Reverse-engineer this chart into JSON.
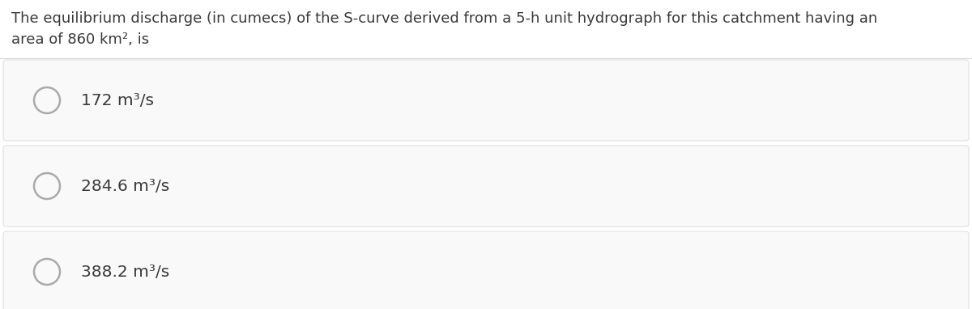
{
  "background_color": "#ffffff",
  "question_line1": "The equilibrium discharge (in cumecs) of the S-curve derived from a 5-h unit hydrograph for this catchment having an",
  "question_line2": "area of 860 km², is",
  "options": [
    "172 m³/s",
    "284.6 m³/s",
    "388.2 m³/s"
  ],
  "text_color": "#3a3a3a",
  "divider_color": "#d8d8d8",
  "circle_edge_color": "#aaaaaa",
  "font_size_question": 13.0,
  "font_size_options": 14.5,
  "option_box_color": "#f9f9f9",
  "option_box_edge": "#e0e0e0"
}
